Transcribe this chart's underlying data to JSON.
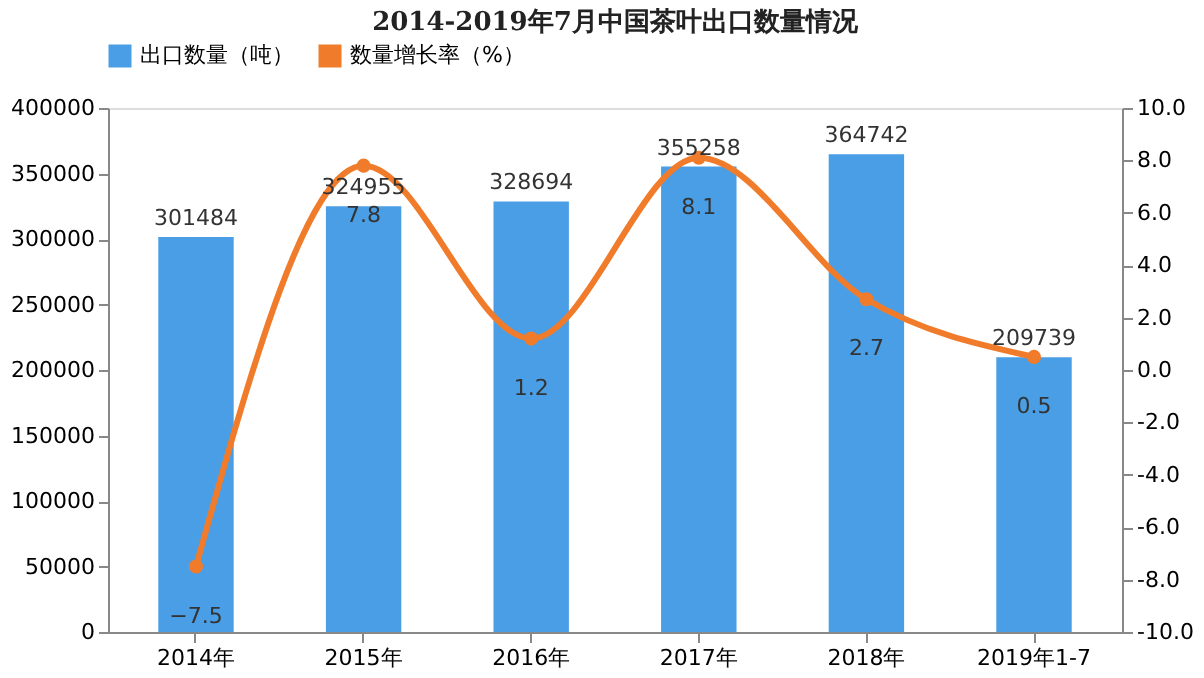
{
  "chart_data": {
    "type": "bar",
    "title": "2014-2019年7月中国茶叶出口数量情况",
    "categories": [
      "2014年",
      "2015年",
      "2016年",
      "2017年",
      "2018年",
      "2019年1-7"
    ],
    "series": [
      {
        "name": "出口数量（吨）",
        "color": "#4a9ee6",
        "values": [
          301484,
          324955,
          328694,
          355258,
          364742,
          209739
        ]
      },
      {
        "name": "数量增长率（%）",
        "type": "line",
        "axis": "y2",
        "color": "#f07c2b",
        "values": [
          -7.5,
          7.8,
          1.2,
          8.1,
          2.7,
          0.5
        ]
      }
    ],
    "ylim": [
      0,
      400000
    ],
    "yticks": [
      0,
      50000,
      100000,
      150000,
      200000,
      250000,
      300000,
      350000,
      400000
    ],
    "y2lim": [
      -10,
      10
    ],
    "y2ticks": [
      {
        "value": -10,
        "label": "-10.0"
      },
      {
        "value": -8,
        "label": "-8.0"
      },
      {
        "value": -6,
        "label": "-6.0"
      },
      {
        "value": -4,
        "label": "-4.0"
      },
      {
        "value": -2,
        "label": "-2.0"
      },
      {
        "value": 0,
        "label": "0.0"
      },
      {
        "value": 2,
        "label": "2.0"
      },
      {
        "value": 4,
        "label": "4.0"
      },
      {
        "value": 6,
        "label": "6.0"
      },
      {
        "value": 8,
        "label": "8.0"
      },
      {
        "value": 10,
        "label": "10.0"
      }
    ],
    "data_labels": true,
    "legend": "top",
    "marker": "circle",
    "grid": false
  }
}
